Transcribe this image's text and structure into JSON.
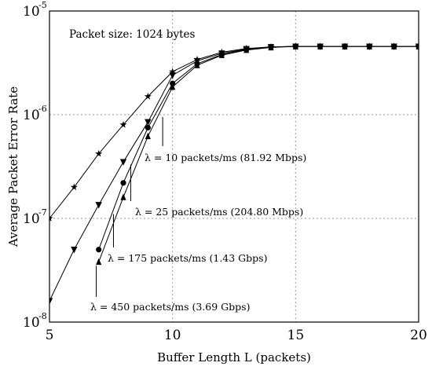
{
  "chart_data": {
    "type": "line",
    "xlabel": "Buffer Length L (packets)",
    "ylabel": "Average Packet Error Rate",
    "xlim": [
      5,
      20
    ],
    "ylim": [
      1e-08,
      1e-05
    ],
    "yscale": "log",
    "grid": true,
    "x_ticks": [
      "5",
      "10",
      "15",
      "20"
    ],
    "y_ticks": [
      {
        "base": "10",
        "exp": "-8",
        "value": 1e-08
      },
      {
        "base": "10",
        "exp": "-7",
        "value": 1e-07
      },
      {
        "base": "10",
        "exp": "-6",
        "value": 1e-06
      },
      {
        "base": "10",
        "exp": "-5",
        "value": 1e-05
      }
    ],
    "annotation": "Packet size: 1024 bytes",
    "series": [
      {
        "name": "λ = 10 packets/ms  (81.92 Mbps)",
        "marker": "star",
        "x": [
          5,
          6,
          7,
          8,
          9,
          10,
          11,
          12,
          13,
          14,
          15,
          16,
          17,
          18,
          19,
          20
        ],
        "y": [
          1e-07,
          2e-07,
          4.2e-07,
          8e-07,
          1.5e-06,
          2.6e-06,
          3.4e-06,
          4e-06,
          4.35e-06,
          4.5e-06,
          4.55e-06,
          4.55e-06,
          4.55e-06,
          4.55e-06,
          4.55e-06,
          4.55e-06
        ]
      },
      {
        "name": "λ = 25 packets/ms  (204.80 Mbps)",
        "marker": "triangle-down",
        "x": [
          5,
          6,
          7,
          8,
          9,
          10,
          11,
          12,
          13,
          14,
          15,
          16,
          17,
          18,
          19,
          20
        ],
        "y": [
          1.6e-08,
          5e-08,
          1.35e-07,
          3.5e-07,
          8.5e-07,
          2.4e-06,
          3.3e-06,
          3.9e-06,
          4.3e-06,
          4.5e-06,
          4.55e-06,
          4.55e-06,
          4.55e-06,
          4.55e-06,
          4.55e-06,
          4.55e-06
        ]
      },
      {
        "name": "λ = 175 packets/ms  (1.43 Gbps)",
        "marker": "circle",
        "x": [
          7,
          8,
          9,
          10,
          11,
          12,
          13,
          14,
          15,
          16,
          17,
          18,
          19,
          20
        ],
        "y": [
          5e-08,
          2.2e-07,
          7.5e-07,
          2e-06,
          3.1e-06,
          3.8e-06,
          4.25e-06,
          4.5e-06,
          4.55e-06,
          4.55e-06,
          4.55e-06,
          4.55e-06,
          4.55e-06,
          4.55e-06
        ]
      },
      {
        "name": "λ = 450 packets/ms  (3.69 Gbps)",
        "marker": "triangle-up",
        "x": [
          7,
          8,
          9,
          10,
          11,
          12,
          13,
          14,
          15,
          16,
          17,
          18,
          19,
          20
        ],
        "y": [
          3.8e-08,
          1.6e-07,
          6.2e-07,
          1.85e-06,
          3e-06,
          3.75e-06,
          4.2e-06,
          4.45e-06,
          4.55e-06,
          4.55e-06,
          4.55e-06,
          4.55e-06,
          4.55e-06,
          4.55e-06
        ]
      }
    ],
    "series_labels": [
      {
        "text": "λ = 10 packets/ms  (81.92 Mbps)",
        "arrow_x": 9.6,
        "arrow_y_top": 9.5e-07
      },
      {
        "text": "λ = 25 packets/ms  (204.80 Mbps)",
        "arrow_x": 8.3,
        "arrow_y_top": 3.3e-07
      },
      {
        "text": "λ = 175 packets/ms  (1.43 Gbps)",
        "arrow_x": 7.6,
        "arrow_y_top": 1.1e-07
      },
      {
        "text": "λ = 450 packets/ms  (3.69 Gbps)",
        "arrow_x": 6.9,
        "arrow_y_top": 3.5e-08
      }
    ]
  }
}
